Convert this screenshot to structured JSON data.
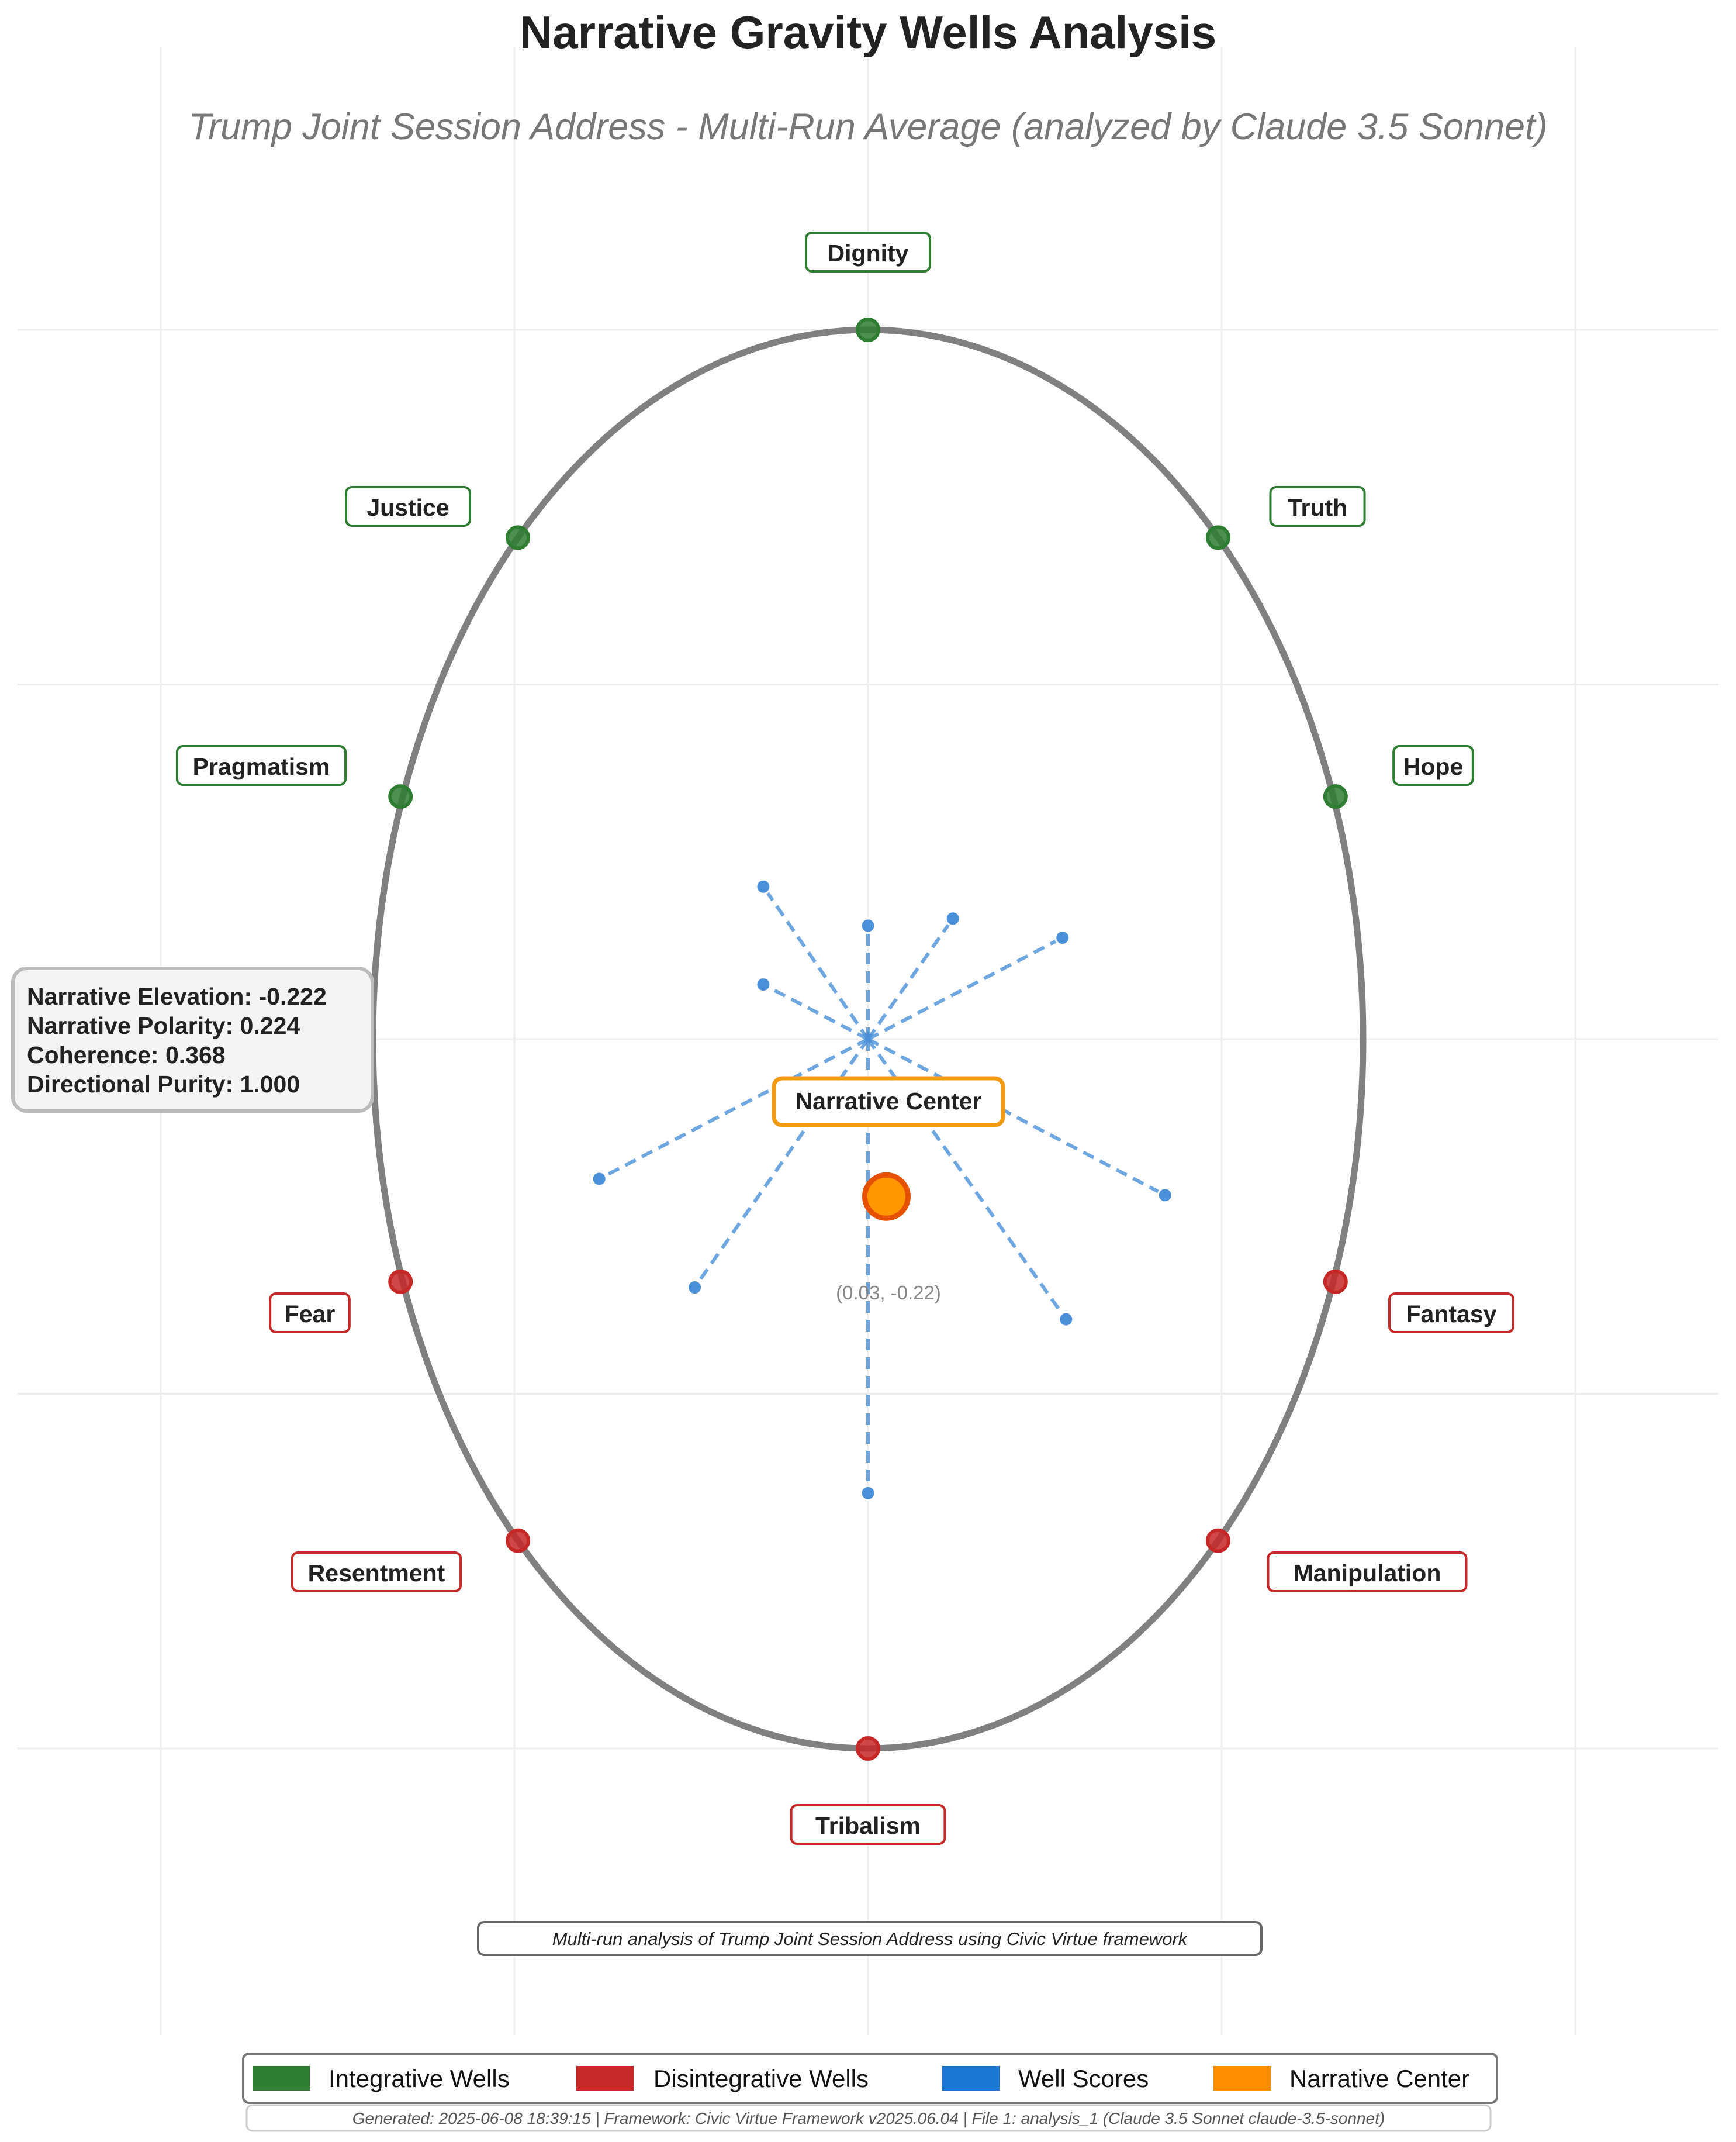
{
  "chart_data": {
    "type": "scatter",
    "title": "Narrative Gravity Wells Analysis",
    "subtitle": "Trump Joint Session Address - Multi-Run Average (analyzed by Claude 3.5 Sonnet)",
    "xlim": [
      -1.2,
      1.2
    ],
    "ylim": [
      -1.4,
      1.4
    ],
    "grid": true,
    "boundary": "ellipse",
    "ellipse": {
      "rx": 0.7,
      "ry": 1.0
    },
    "wells": [
      {
        "name": "Dignity",
        "type": "integrative",
        "x": 0.0,
        "y": 1.0
      },
      {
        "name": "Truth",
        "type": "integrative",
        "x": 0.495,
        "y": 0.707
      },
      {
        "name": "Hope",
        "type": "integrative",
        "x": 0.661,
        "y": 0.342
      },
      {
        "name": "Justice",
        "type": "integrative",
        "x": -0.495,
        "y": 0.707
      },
      {
        "name": "Pragmatism",
        "type": "integrative",
        "x": -0.661,
        "y": 0.342
      },
      {
        "name": "Fear",
        "type": "disintegrative",
        "x": -0.661,
        "y": -0.342
      },
      {
        "name": "Fantasy",
        "type": "disintegrative",
        "x": 0.661,
        "y": -0.342
      },
      {
        "name": "Resentment",
        "type": "disintegrative",
        "x": -0.495,
        "y": -0.707
      },
      {
        "name": "Manipulation",
        "type": "disintegrative",
        "x": 0.495,
        "y": -0.707
      },
      {
        "name": "Tribalism",
        "type": "disintegrative",
        "x": 0.0,
        "y": -1.0
      }
    ],
    "well_scores": [
      {
        "x": 0.0,
        "y": 0.16
      },
      {
        "x": 0.12,
        "y": 0.17
      },
      {
        "x": 0.275,
        "y": 0.143
      },
      {
        "x": -0.148,
        "y": 0.215
      },
      {
        "x": -0.148,
        "y": 0.077
      },
      {
        "x": -0.38,
        "y": -0.197
      },
      {
        "x": -0.245,
        "y": -0.35
      },
      {
        "x": 0.42,
        "y": -0.22
      },
      {
        "x": 0.28,
        "y": -0.395
      },
      {
        "x": 0.0,
        "y": -0.64
      }
    ],
    "narrative_center": {
      "x": 0.026,
      "y": -0.222,
      "label": "Narrative Center",
      "coord_label": "(0.03, -0.22)"
    },
    "metrics": [
      "Narrative Elevation: -0.222",
      "Narrative Polarity: 0.224",
      "Coherence: 0.368",
      "Directional Purity: 1.000"
    ],
    "annotation": "Multi-run analysis of Trump Joint Session Address using Civic Virtue framework",
    "legend": [
      {
        "label": "Integrative Wells",
        "color": "#2e7d32"
      },
      {
        "label": "Disintegrative Wells",
        "color": "#c62828"
      },
      {
        "label": "Well Scores",
        "color": "#1976d2"
      },
      {
        "label": "Narrative Center",
        "color": "#ff8f00"
      }
    ],
    "legend_position": "bottom",
    "footer": "Generated: 2025-06-08 18:39:15 | Framework: Civic Virtue Framework v2025.06.04 | File 1: analysis_1 (Claude 3.5 Sonnet claude-3.5-sonnet)"
  },
  "colors": {
    "integrative": "#2e7d32",
    "disintegrative": "#c62828",
    "well_score": "#4a90d9",
    "center": "#ff9800",
    "boundary": "#808080"
  }
}
